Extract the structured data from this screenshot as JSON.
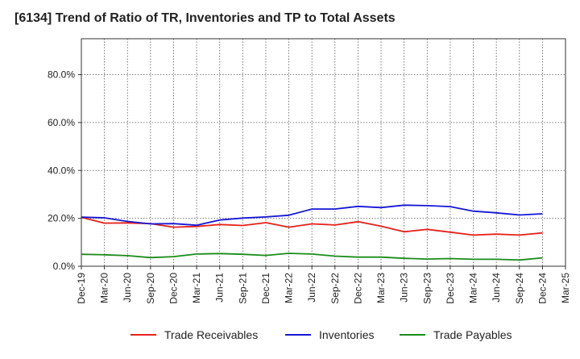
{
  "chart_data": {
    "type": "line",
    "title": "[6134]  Trend of Ratio of TR, Inventories and TP to Total Assets",
    "xlabel": "",
    "ylabel": "",
    "ylim": [
      0,
      95
    ],
    "y_ticks": [
      0,
      20,
      40,
      60,
      80
    ],
    "y_tick_labels": [
      "0.0%",
      "20.0%",
      "40.0%",
      "60.0%",
      "80.0%"
    ],
    "x_tick_labels": [
      "Dec-19",
      "Mar-20",
      "Jun-20",
      "Sep-20",
      "Dec-20",
      "Mar-21",
      "Jun-21",
      "Sep-21",
      "Dec-21",
      "Mar-22",
      "Jun-22",
      "Sep-22",
      "Dec-22",
      "Mar-23",
      "Jun-23",
      "Sep-23",
      "Dec-23",
      "Mar-24",
      "Jun-24",
      "Sep-24",
      "Dec-24",
      "Mar-25"
    ],
    "categories": [
      "Dec-19",
      "Mar-20",
      "Jun-20",
      "Sep-20",
      "Dec-20",
      "Mar-21",
      "Jun-21",
      "Sep-21",
      "Dec-21",
      "Mar-22",
      "Jun-22",
      "Sep-22",
      "Dec-22",
      "Mar-23",
      "Jun-23",
      "Sep-23",
      "Dec-23",
      "Mar-24",
      "Jun-24",
      "Sep-24",
      "Dec-24"
    ],
    "grid": true,
    "legend_position": "bottom",
    "series": [
      {
        "name": "Trade Receivables",
        "color": "#e8201a",
        "values": [
          20.4,
          18.0,
          18.1,
          17.8,
          16.3,
          16.6,
          17.4,
          17.0,
          18.2,
          16.3,
          17.7,
          17.2,
          18.6,
          16.7,
          14.4,
          15.4,
          14.2,
          13.0,
          13.4,
          13.0,
          13.9
        ]
      },
      {
        "name": "Inventories",
        "color": "#1616d6",
        "values": [
          20.5,
          20.2,
          18.7,
          17.7,
          17.8,
          17.1,
          19.3,
          20.1,
          20.6,
          21.3,
          23.9,
          23.9,
          25.0,
          24.5,
          25.5,
          25.3,
          24.9,
          23.0,
          22.3,
          21.4,
          21.9
        ]
      },
      {
        "name": "Trade Payables",
        "color": "#1a8c1a",
        "values": [
          5.0,
          4.8,
          4.4,
          3.6,
          4.0,
          5.1,
          5.3,
          5.0,
          4.5,
          5.4,
          5.1,
          4.2,
          3.8,
          3.8,
          3.3,
          3.0,
          3.2,
          2.9,
          2.9,
          2.6,
          3.5
        ]
      }
    ]
  }
}
